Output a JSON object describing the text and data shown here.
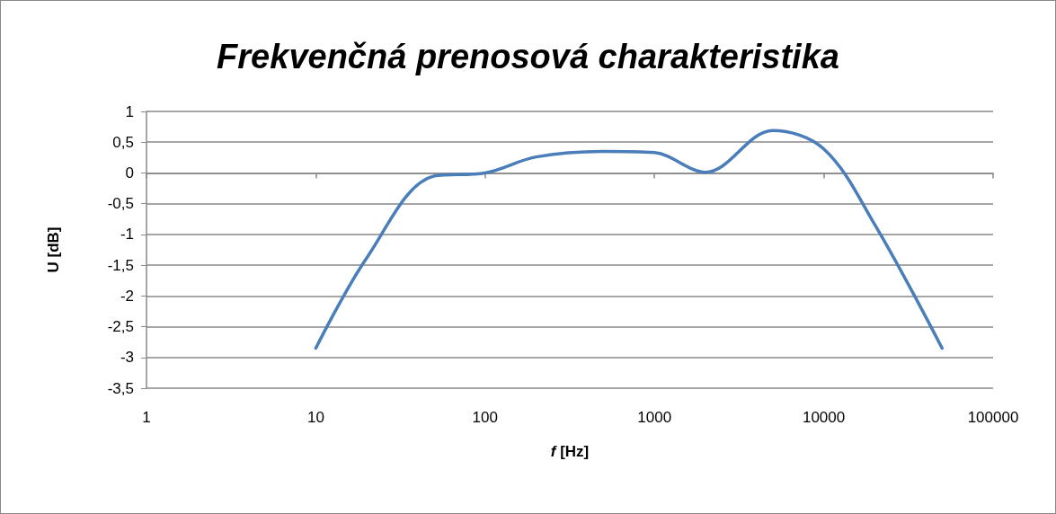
{
  "chart_data": {
    "type": "line",
    "title": "Frekvenčná prenosová charakteristika",
    "xlabel": "f [Hz]",
    "ylabel": "U [dB]",
    "x": [
      10,
      20,
      50,
      100,
      200,
      500,
      1000,
      2000,
      5000,
      10000,
      20000,
      50000
    ],
    "series": [
      {
        "color": "#4a7ebb",
        "values": [
          -2.85,
          -1.38,
          -0.05,
          0,
          0.26,
          0.35,
          0.33,
          0.01,
          0.69,
          0.39,
          -0.84,
          -2.85
        ]
      }
    ],
    "log": "x",
    "xlim": [
      1,
      100000
    ],
    "xticks": [
      1,
      10,
      100,
      1000,
      10000,
      100000
    ],
    "ylim": [
      -3.5,
      1
    ],
    "yticks": [
      {
        "value": -3.5,
        "label": "-3,5"
      },
      -3,
      {
        "value": -2.5,
        "label": "-2,5"
      },
      -2,
      {
        "value": -1.5,
        "label": "-1,5"
      },
      -1,
      {
        "value": -0.5,
        "label": "-0,5"
      },
      0,
      {
        "value": 0.5,
        "label": "0,5"
      },
      1
    ],
    "grid": "y",
    "marker": "none",
    "line_style": "solid"
  }
}
